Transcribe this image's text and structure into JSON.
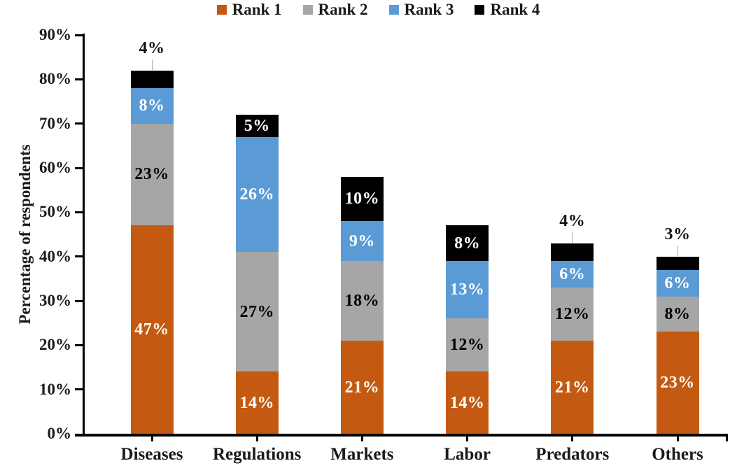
{
  "chart_data": {
    "type": "bar",
    "stacked": true,
    "title": "",
    "ylabel": "Percentage of respondents",
    "xlabel": "",
    "categories": [
      "Diseases",
      "Regulations",
      "Markets",
      "Labor",
      "Predators",
      "Others"
    ],
    "series": [
      {
        "name": "Rank 1",
        "color": "#C45A11",
        "label_color": "#ffffff",
        "values": [
          47,
          14,
          21,
          14,
          21,
          23
        ]
      },
      {
        "name": "Rank 2",
        "color": "#A6A6A6",
        "label_color": "#000000",
        "values": [
          23,
          27,
          18,
          12,
          12,
          8
        ]
      },
      {
        "name": "Rank 3",
        "color": "#5B9BD5",
        "label_color": "#ffffff",
        "values": [
          8,
          26,
          9,
          13,
          6,
          6
        ]
      },
      {
        "name": "Rank 4",
        "color": "#000000",
        "label_color": "#ffffff",
        "values": [
          4,
          5,
          10,
          8,
          4,
          3
        ],
        "label_outside": [
          true,
          false,
          false,
          false,
          true,
          true
        ]
      }
    ],
    "totals": [
      82,
      72,
      58,
      47,
      43,
      40
    ],
    "data_label_format": "{v}%",
    "ylim": [
      0,
      90
    ],
    "ytick_step": 10,
    "yticks": [
      "0%",
      "10%",
      "20%",
      "30%",
      "40%",
      "50%",
      "60%",
      "70%",
      "80%",
      "90%"
    ],
    "grid": false,
    "legend_position": "top",
    "legend": [
      {
        "label": "Rank 1",
        "color": "#C45A11"
      },
      {
        "label": "Rank 2",
        "color": "#A6A6A6"
      },
      {
        "label": "Rank 3",
        "color": "#5B9BD5"
      },
      {
        "label": "Rank 4",
        "color": "#000000"
      }
    ]
  }
}
